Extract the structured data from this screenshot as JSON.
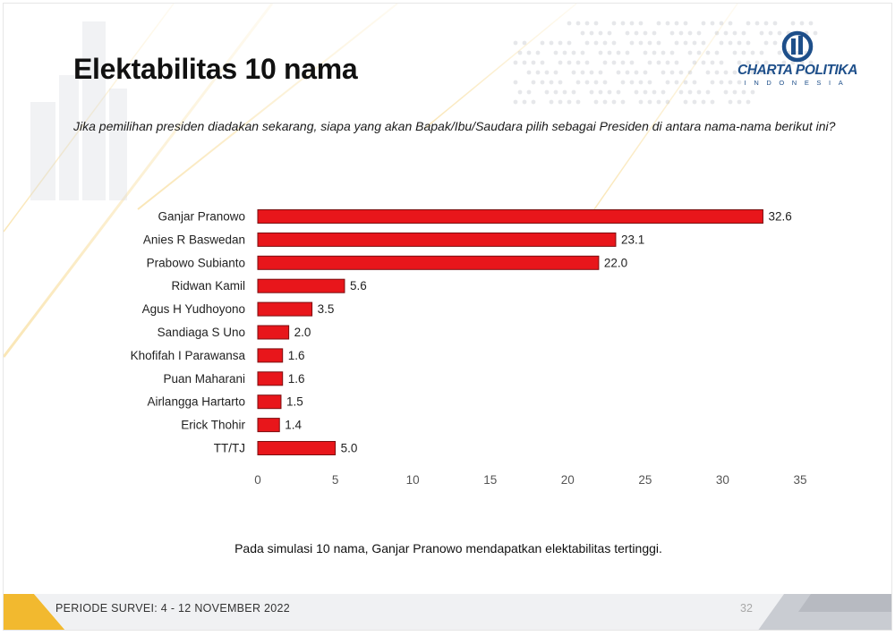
{
  "slide": {
    "title": "Elektabilitas 10 nama",
    "question": "Jika pemilihan presiden diadakan sekarang, siapa yang akan Bapak/Ibu/Saudara pilih sebagai Presiden di antara nama-nama berikut ini?",
    "caption": "Pada simulasi 10 nama, Ganjar Pranowo mendapatkan elektabilitas tertinggi.",
    "logo": {
      "name": "CHARTA POLITIKA",
      "sub": "INDONESIA",
      "icon": "charta-politika-logo-icon"
    },
    "footer": {
      "period": "PERIODE SURVEI: 4 - 12 NOVEMBER 2022",
      "page_number": "32"
    }
  },
  "colors": {
    "bar": "#e8161b",
    "bar_stroke": "#7a0e10",
    "accent_gold": "#f2b92f",
    "brand_blue": "#1e4f8a"
  },
  "chart_data": {
    "type": "bar",
    "orientation": "horizontal",
    "categories": [
      "Ganjar Pranowo",
      "Anies R Baswedan",
      "Prabowo Subianto",
      "Ridwan Kamil",
      "Agus H Yudhoyono",
      "Sandiaga S Uno",
      "Khofifah I Parawansa",
      "Puan Maharani",
      "Airlangga Hartarto",
      "Erick Thohir",
      "TT/TJ"
    ],
    "values": [
      32.6,
      23.1,
      22.0,
      5.6,
      3.5,
      2.0,
      1.6,
      1.6,
      1.5,
      1.4,
      5.0
    ],
    "value_labels": [
      "32.6",
      "23.1",
      "22.0",
      "5.6",
      "3.5",
      "2.0",
      "1.6",
      "1.6",
      "1.5",
      "1.4",
      "5.0"
    ],
    "xlim": [
      0,
      35
    ],
    "xticks": [
      0,
      5,
      10,
      15,
      20,
      25,
      30,
      35
    ],
    "title": "",
    "xlabel": "",
    "ylabel": "",
    "grid": false,
    "legend": "none"
  }
}
